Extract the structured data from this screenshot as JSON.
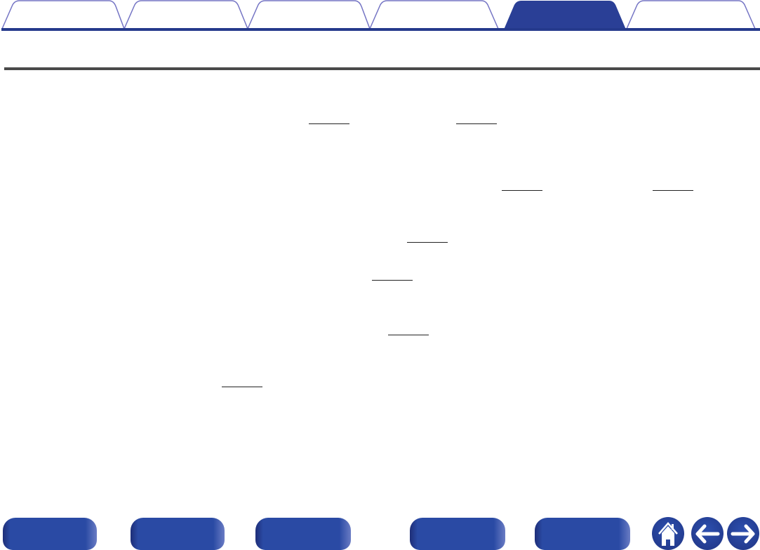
{
  "colors": {
    "accent": "#253a8c",
    "tab_outline": "#7474c4",
    "active_tab": "#2a3f96",
    "rule": "#4a4a4a",
    "button": "#2a4aa4"
  },
  "tabs": {
    "count": 6,
    "active_index": 4
  },
  "footer": {
    "icons": [
      "home-icon",
      "arrow-left-icon",
      "arrow-right-icon"
    ]
  }
}
